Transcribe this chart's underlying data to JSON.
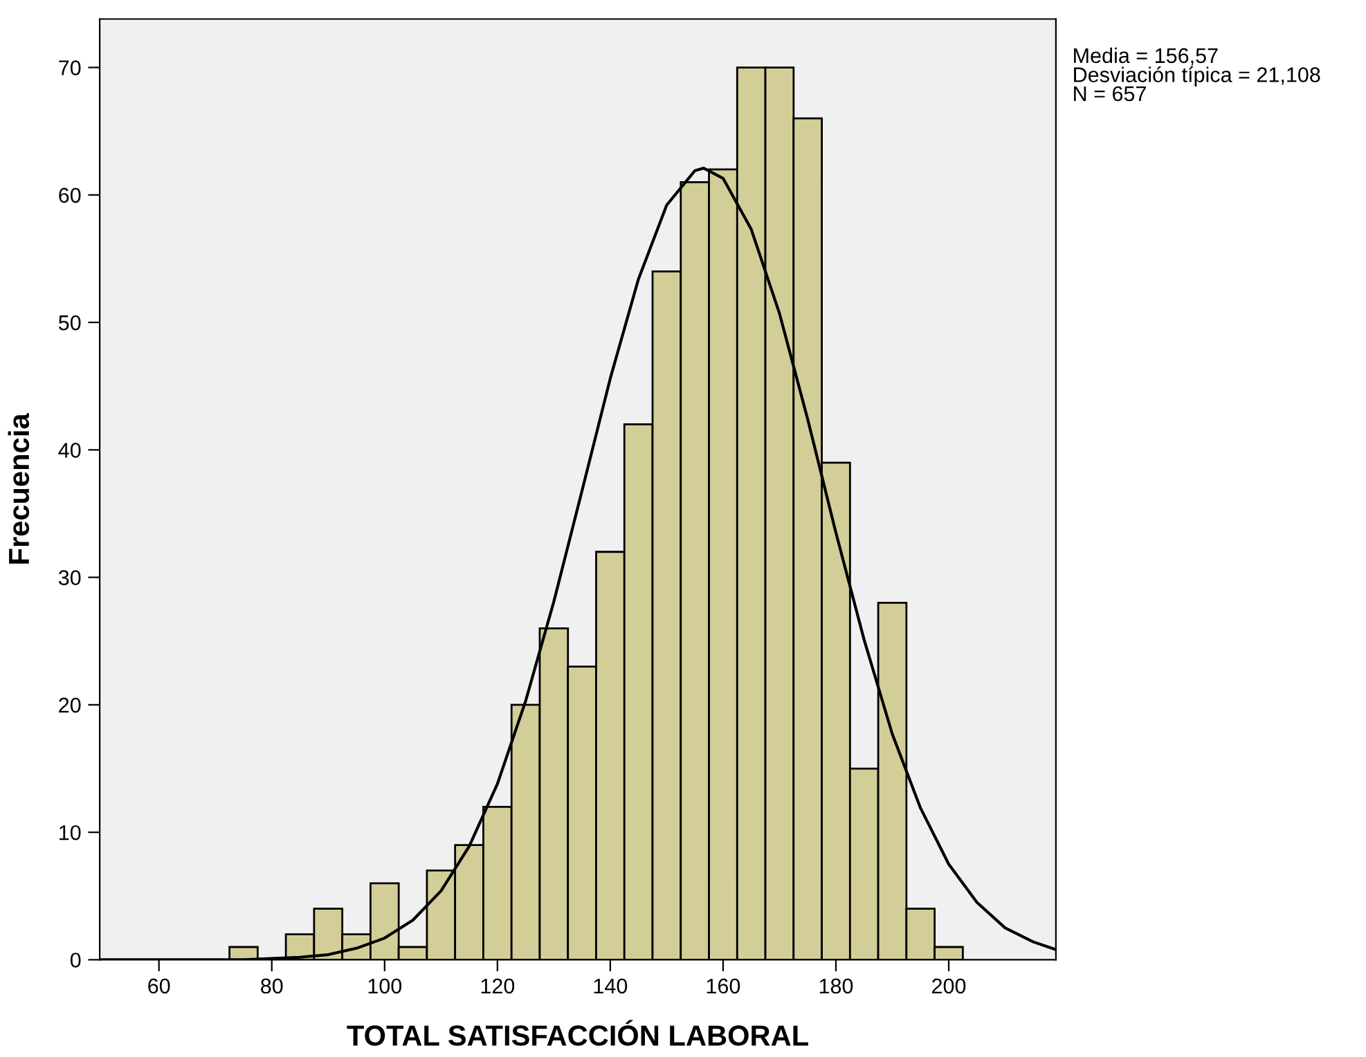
{
  "chart_data": {
    "type": "histogram",
    "xlabel": "TOTAL SATISFACCIÓN LABORAL",
    "ylabel": "Frecuencia",
    "annotations": [
      "Media = 156,57\nDesviación típica = 21,108\nN = 657"
    ],
    "xlim": [
      49.5,
      219
    ],
    "xticks": [
      60,
      80,
      100,
      120,
      140,
      160,
      180,
      200
    ],
    "ylim": [
      0,
      73.8
    ],
    "yticks": [
      0,
      10,
      20,
      30,
      40,
      50,
      60,
      70
    ],
    "grid": false,
    "legend": false,
    "series": [
      {
        "color": "#d3ce98",
        "bins": [
          72.5,
          77.5,
          82.5,
          87.5,
          92.5,
          97.5,
          102.5,
          107.5,
          112.5,
          117.5,
          122.5,
          127.5,
          132.5,
          137.5,
          142.5,
          147.5,
          152.5,
          157.5,
          162.5,
          167.5,
          172.5,
          177.5,
          182.5,
          187.5,
          192.5,
          197.5,
          202.5
        ],
        "values": [
          1,
          0,
          2,
          4,
          2,
          6,
          1,
          7,
          9,
          12,
          20,
          26,
          23,
          32,
          42,
          54,
          61,
          62,
          70,
          70,
          66,
          39,
          15,
          28,
          4,
          1
        ]
      },
      {
        "type": "line",
        "color": "#000000",
        "x": [
          49.5,
          60,
          70,
          75,
          80,
          85,
          90,
          95,
          100,
          105,
          110,
          115,
          120,
          125,
          130,
          135,
          140,
          145,
          150,
          155,
          156.57,
          160,
          165,
          170,
          175,
          180,
          185,
          190,
          195,
          200,
          205,
          210,
          215,
          219
        ],
        "values": [
          0,
          0,
          0,
          0,
          0.1,
          0.2,
          0.4,
          0.9,
          1.7,
          3.1,
          5.4,
          8.9,
          13.8,
          20.3,
          28.1,
          36.8,
          45.6,
          53.4,
          59.2,
          61.9,
          62.1,
          61.3,
          57.3,
          50.7,
          42.4,
          33.5,
          25.1,
          17.7,
          11.9,
          7.5,
          4.5,
          2.5,
          1.4,
          0.8
        ]
      }
    ]
  }
}
